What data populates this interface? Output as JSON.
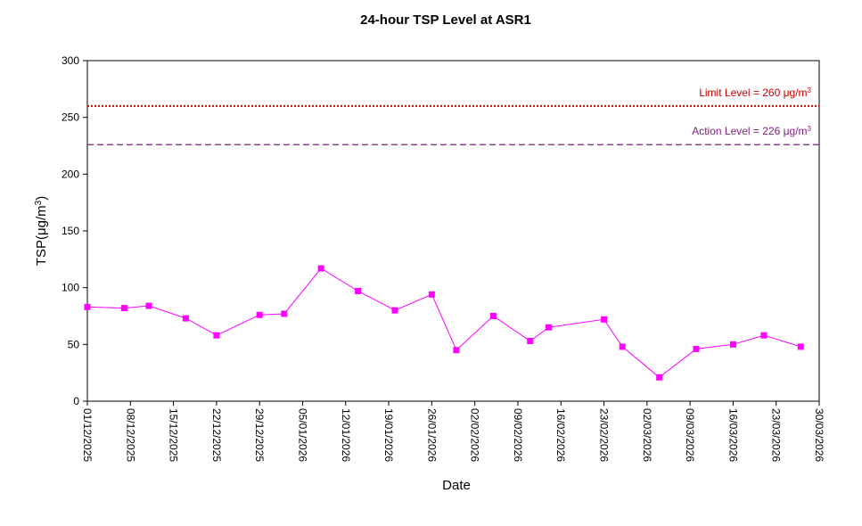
{
  "chart_data": {
    "type": "line",
    "title": "24-hour TSP Level at ASR1",
    "xlabel": "Date",
    "ylabel_main": "TSP(",
    "ylabel_mu": "μ",
    "ylabel_unit": "g/m",
    "ylabel_sup": "3",
    "ylabel_close": ")",
    "ylim": [
      0,
      300
    ],
    "yticks": [
      "0",
      "50",
      "100",
      "150",
      "200",
      "250",
      "300"
    ],
    "xlim": [
      "2025-12-01",
      "2026-03-30"
    ],
    "xticks": [
      "01/12/2025",
      "08/12/2025",
      "15/12/2025",
      "22/12/2025",
      "29/12/2025",
      "05/01/2026",
      "12/01/2026",
      "19/01/2026",
      "26/01/2026",
      "02/02/2026",
      "09/02/2026",
      "16/02/2026",
      "23/02/2026",
      "02/03/2026",
      "09/03/2026",
      "16/03/2026",
      "23/03/2026",
      "30/03/2026"
    ],
    "grid": false,
    "series": [
      {
        "color": "#FF00FF",
        "marker": "square",
        "points": [
          {
            "x": "2025-12-01",
            "y": 83
          },
          {
            "x": "2025-12-07",
            "y": 82
          },
          {
            "x": "2025-12-11",
            "y": 84
          },
          {
            "x": "2025-12-17",
            "y": 73
          },
          {
            "x": "2025-12-22",
            "y": 58
          },
          {
            "x": "2025-12-29",
            "y": 76
          },
          {
            "x": "2026-01-02",
            "y": 77
          },
          {
            "x": "2026-01-08",
            "y": 117
          },
          {
            "x": "2026-01-14",
            "y": 97
          },
          {
            "x": "2026-01-20",
            "y": 80
          },
          {
            "x": "2026-01-26",
            "y": 94
          },
          {
            "x": "2026-01-30",
            "y": 45
          },
          {
            "x": "2026-02-05",
            "y": 75
          },
          {
            "x": "2026-02-11",
            "y": 53
          },
          {
            "x": "2026-02-14",
            "y": 65
          },
          {
            "x": "2026-02-23",
            "y": 72
          },
          {
            "x": "2026-02-26",
            "y": 48
          },
          {
            "x": "2026-03-04",
            "y": 21
          },
          {
            "x": "2026-03-10",
            "y": 46
          },
          {
            "x": "2026-03-16",
            "y": 50
          },
          {
            "x": "2026-03-21",
            "y": 58
          },
          {
            "x": "2026-03-27",
            "y": 48
          }
        ]
      }
    ],
    "reference_lines": [
      {
        "name": "Limit Level",
        "value": 260,
        "label_prefix": "Limit Level  = 260 ",
        "label_mu": "μ",
        "label_unit": "g/m",
        "label_sup": "3",
        "color": "#CC0000",
        "style": "dotted"
      },
      {
        "name": "Action Level",
        "value": 226,
        "label_prefix": "Action Level  = 226 ",
        "label_mu": "μ",
        "label_unit": "g/m",
        "label_sup": "3",
        "color": "#7F1F7F",
        "style": "dashed"
      }
    ]
  }
}
